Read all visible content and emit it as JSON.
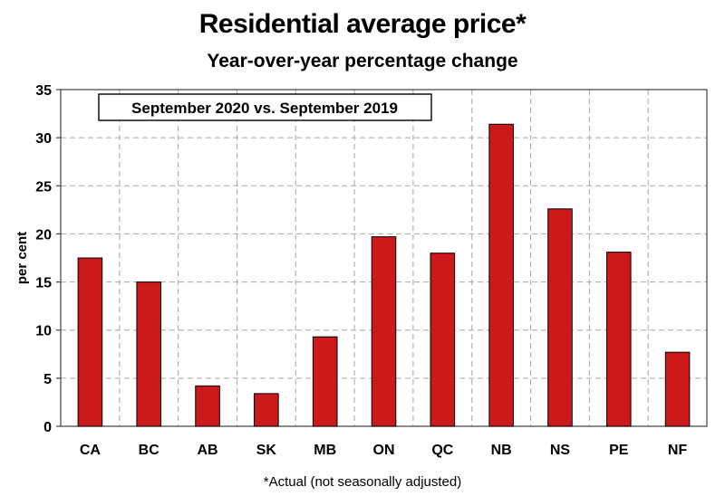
{
  "chart_data": {
    "type": "bar",
    "title": "Residential average price*",
    "subtitle": "Year-over-year percentage change",
    "ylabel": "per cent",
    "xlabel": "",
    "annotation": "September 2020 vs. September 2019",
    "footnote": "*Actual (not seasonally adjusted)",
    "categories": [
      "CA",
      "BC",
      "AB",
      "SK",
      "MB",
      "ON",
      "QC",
      "NB",
      "NS",
      "PE",
      "NF"
    ],
    "values": [
      17.5,
      15.0,
      4.2,
      3.4,
      9.3,
      19.7,
      18.0,
      31.4,
      22.6,
      18.1,
      7.7
    ],
    "ylim": [
      0,
      35
    ],
    "yticks": [
      0,
      5,
      10,
      15,
      20,
      25,
      30,
      35
    ],
    "grid": true,
    "bar_color": "#cc1a1a",
    "grid_color": "#a6a6a6"
  }
}
